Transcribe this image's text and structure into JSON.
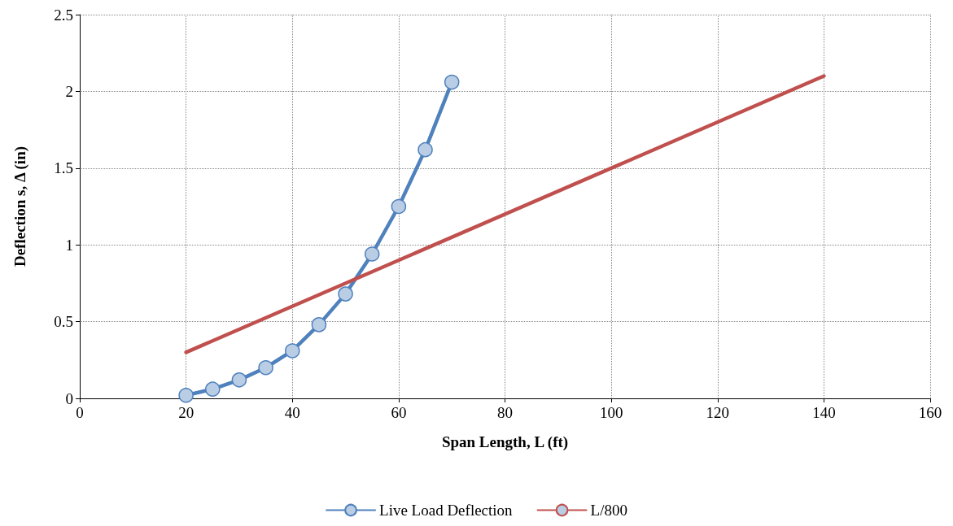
{
  "chart_data": {
    "type": "line",
    "xlabel": "Span Length, L (ft)",
    "ylabel": "Deflection s, Δ (in)",
    "series": [
      {
        "name": "Live Load Deflection",
        "color": "#4f81bd",
        "marker": "circle",
        "x": [
          20,
          25,
          30,
          35,
          40,
          45,
          50,
          55,
          60,
          65,
          70
        ],
        "values": [
          0.02,
          0.06,
          0.12,
          0.2,
          0.31,
          0.48,
          0.68,
          0.94,
          1.25,
          1.62,
          2.06
        ]
      },
      {
        "name": "L/800",
        "color": "#c0504d",
        "marker": "none",
        "x": [
          20,
          140
        ],
        "values": [
          0.3,
          2.1
        ]
      }
    ],
    "xlim": [
      0,
      160
    ],
    "xticks": [
      0,
      20,
      40,
      60,
      80,
      100,
      120,
      140,
      160
    ],
    "ylim": [
      0,
      2.5
    ],
    "yticks": [
      0,
      0.5,
      1,
      1.5,
      2,
      2.5
    ],
    "grid": true,
    "legend": "bottom",
    "line_style": "solid"
  }
}
